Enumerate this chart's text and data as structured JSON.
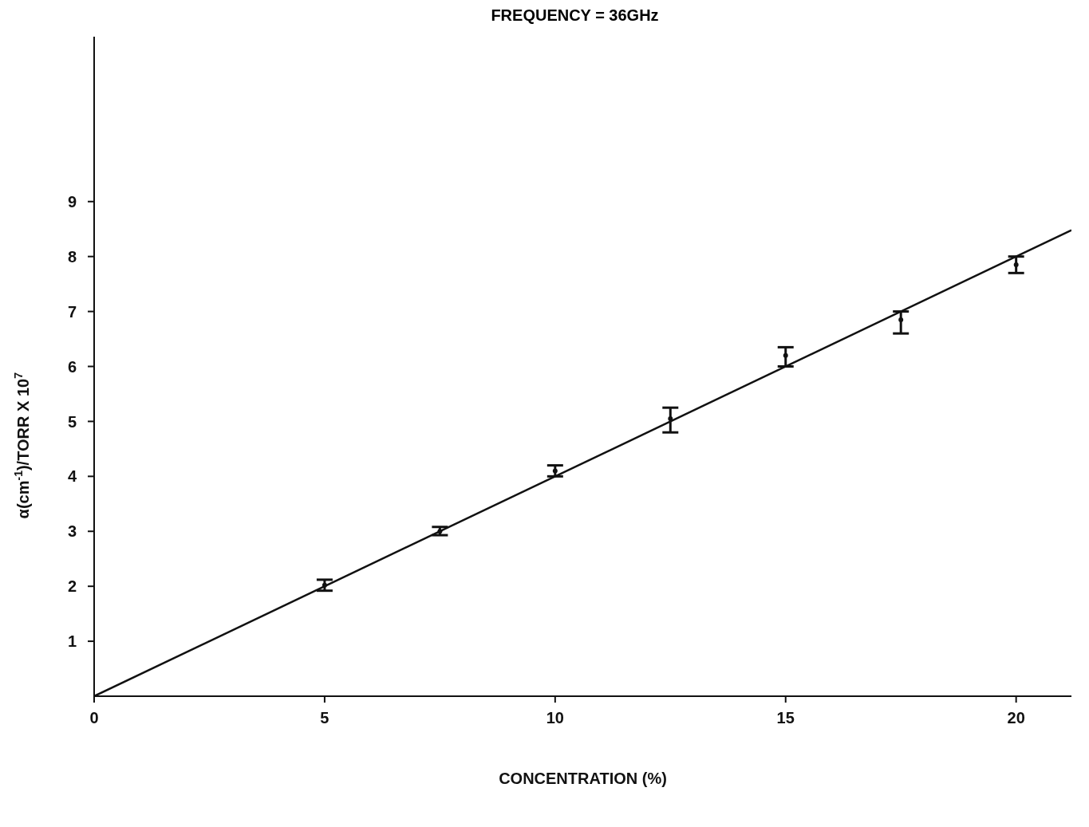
{
  "chart_data": {
    "type": "scatter",
    "title": "FREQUENCY = 36GHz",
    "xlabel": "CONCENTRATION (%)",
    "ylabel": "α(cm$^{-1}$)/TORR X 10$^{7}$",
    "xlim": [
      0,
      21.2
    ],
    "xticks": [
      0,
      5,
      10,
      15,
      20
    ],
    "ylim": [
      0,
      12
    ],
    "yticks": [
      1,
      2,
      3,
      4,
      5,
      6,
      7,
      8,
      9
    ],
    "grid": false,
    "legend": false,
    "series": [
      {
        "marker": "circle",
        "color": "#111111",
        "x": [
          5,
          7.5,
          10,
          12.5,
          15,
          17.5,
          20
        ],
        "values": [
          2.02,
          3.0,
          4.1,
          5.05,
          6.2,
          6.85,
          7.85
        ],
        "errors": [
          [
            1.92,
            2.12
          ],
          [
            2.93,
            3.08
          ],
          [
            4.0,
            4.2
          ],
          [
            4.8,
            5.25
          ],
          [
            6.0,
            6.35
          ],
          [
            6.6,
            7.0
          ],
          [
            7.7,
            8.0
          ]
        ]
      },
      {
        "type": "line",
        "color": "#111111",
        "line_style": "solid",
        "x": [
          0,
          21.2
        ],
        "values": [
          0,
          8.48
        ]
      }
    ]
  }
}
